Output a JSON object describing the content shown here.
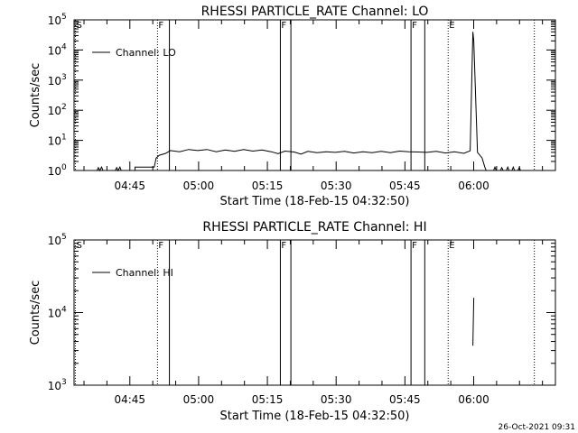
{
  "footer_date": "26-Oct-2021 09:31",
  "chart_data": [
    {
      "type": "line",
      "title": "RHESSI PARTICLE_RATE Channel: LO",
      "xlabel": "Start Time (18-Feb-15 04:32:50)",
      "ylabel": "Counts/sec",
      "y_scale": "log",
      "ylim": [
        1,
        100000
      ],
      "xlim_minutes": [
        0,
        105
      ],
      "x_ticks": [
        {
          "label": "04:45",
          "value": 12.17
        },
        {
          "label": "05:00",
          "value": 27.17
        },
        {
          "label": "05:15",
          "value": 42.17
        },
        {
          "label": "05:30",
          "value": 57.17
        },
        {
          "label": "05:45",
          "value": 72.17
        },
        {
          "label": "06:00",
          "value": 87.17
        }
      ],
      "y_ticks": [
        {
          "value": 1,
          "mant": "10",
          "exp": "0"
        },
        {
          "value": 10,
          "mant": "10",
          "exp": "1"
        },
        {
          "value": 100,
          "mant": "10",
          "exp": "2"
        },
        {
          "value": 1000,
          "mant": "10",
          "exp": "3"
        },
        {
          "value": 10000,
          "mant": "10",
          "exp": "4"
        },
        {
          "value": 100000,
          "mant": "10",
          "exp": "5"
        }
      ],
      "legend": {
        "label": "Channel: LO",
        "position": "top-left"
      },
      "markers": [
        {
          "x": 0.3,
          "label": "S",
          "style": "dotted"
        },
        {
          "x": 18.2,
          "label": "F",
          "style": "dotted"
        },
        {
          "x": 20.8,
          "label": "",
          "style": "solid"
        },
        {
          "x": 45.0,
          "label": "F",
          "style": "solid"
        },
        {
          "x": 47.3,
          "label": "",
          "style": "solid"
        },
        {
          "x": 73.5,
          "label": "F",
          "style": "solid"
        },
        {
          "x": 76.5,
          "label": "",
          "style": "solid"
        },
        {
          "x": 81.6,
          "label": "E",
          "style": "dotted"
        },
        {
          "x": 100.4,
          "label": "",
          "style": "dotted"
        }
      ],
      "series": [
        {
          "values": [
            [
              5.0,
              1
            ],
            [
              5.3,
              1.25
            ],
            [
              5.6,
              1
            ],
            [
              6.0,
              1.3
            ],
            [
              6.3,
              1
            ],
            [
              9.0,
              1
            ],
            [
              9.3,
              1.25
            ],
            [
              9.6,
              1
            ],
            [
              10.0,
              1.3
            ],
            [
              10.3,
              1
            ],
            [
              13.3,
              1
            ],
            [
              13.3,
              1.3
            ],
            [
              17.5,
              1.3
            ],
            [
              17.9,
              2.6
            ],
            [
              18.6,
              3.2
            ],
            [
              20,
              3.7
            ],
            [
              21,
              4.6
            ],
            [
              23,
              4.2
            ],
            [
              25,
              5.0
            ],
            [
              27,
              4.6
            ],
            [
              29,
              5.0
            ],
            [
              31,
              4.2
            ],
            [
              33,
              4.8
            ],
            [
              35,
              4.3
            ],
            [
              37,
              5.0
            ],
            [
              39,
              4.4
            ],
            [
              41,
              4.8
            ],
            [
              43,
              4.2
            ],
            [
              44.5,
              3.6
            ],
            [
              46,
              4.4
            ],
            [
              48,
              4.1
            ],
            [
              49.5,
              3.5
            ],
            [
              51,
              4.3
            ],
            [
              53,
              3.9
            ],
            [
              55,
              4.2
            ],
            [
              57,
              4.0
            ],
            [
              59,
              4.3
            ],
            [
              61,
              3.8
            ],
            [
              63,
              4.2
            ],
            [
              65,
              3.9
            ],
            [
              67,
              4.3
            ],
            [
              69,
              3.9
            ],
            [
              71,
              4.4
            ],
            [
              73,
              4.2
            ],
            [
              75,
              4.1
            ],
            [
              77,
              4.0
            ],
            [
              79,
              4.3
            ],
            [
              81,
              3.8
            ],
            [
              83,
              4.2
            ],
            [
              85,
              3.7
            ],
            [
              86.4,
              4.5
            ],
            [
              87.0,
              40000
            ],
            [
              87.2,
              20000
            ],
            [
              88.0,
              4.0
            ],
            [
              89.0,
              2.6
            ],
            [
              89.6,
              1.3
            ],
            [
              89.9,
              1
            ],
            [
              91.5,
              1
            ],
            [
              91.8,
              1.3
            ],
            [
              92.1,
              1
            ],
            [
              93.0,
              1
            ],
            [
              93.3,
              1.25
            ],
            [
              93.6,
              1
            ],
            [
              94.3,
              1
            ],
            [
              94.6,
              1.3
            ],
            [
              94.9,
              1
            ],
            [
              95.5,
              1
            ],
            [
              95.8,
              1.3
            ],
            [
              96.1,
              1
            ],
            [
              96.8,
              1
            ],
            [
              97.1,
              1.25
            ],
            [
              97.4,
              1
            ]
          ]
        }
      ]
    },
    {
      "type": "line",
      "title": "RHESSI PARTICLE_RATE Channel: HI",
      "xlabel": "Start Time (18-Feb-15 04:32:50)",
      "ylabel": "Counts/sec",
      "y_scale": "log",
      "ylim": [
        1000,
        100000
      ],
      "xlim_minutes": [
        0,
        105
      ],
      "x_ticks": [
        {
          "label": "04:45",
          "value": 12.17
        },
        {
          "label": "05:00",
          "value": 27.17
        },
        {
          "label": "05:15",
          "value": 42.17
        },
        {
          "label": "05:30",
          "value": 57.17
        },
        {
          "label": "05:45",
          "value": 72.17
        },
        {
          "label": "06:00",
          "value": 87.17
        }
      ],
      "y_ticks": [
        {
          "value": 1000,
          "mant": "10",
          "exp": "3"
        },
        {
          "value": 10000,
          "mant": "10",
          "exp": "4"
        },
        {
          "value": 100000,
          "mant": "10",
          "exp": "5"
        }
      ],
      "legend": {
        "label": "Channel: HI",
        "position": "top-left"
      },
      "markers": [
        {
          "x": 0.3,
          "label": "S",
          "style": "dotted"
        },
        {
          "x": 18.2,
          "label": "F",
          "style": "dotted"
        },
        {
          "x": 20.8,
          "label": "",
          "style": "solid"
        },
        {
          "x": 45.0,
          "label": "F",
          "style": "solid"
        },
        {
          "x": 47.3,
          "label": "",
          "style": "solid"
        },
        {
          "x": 73.5,
          "label": "F",
          "style": "solid"
        },
        {
          "x": 76.5,
          "label": "",
          "style": "solid"
        },
        {
          "x": 81.6,
          "label": "E",
          "style": "dotted"
        },
        {
          "x": 100.4,
          "label": "",
          "style": "dotted"
        }
      ],
      "series": [
        {
          "values": [
            [
              87.0,
              3500
            ],
            [
              87.2,
              16000
            ]
          ]
        }
      ]
    }
  ]
}
